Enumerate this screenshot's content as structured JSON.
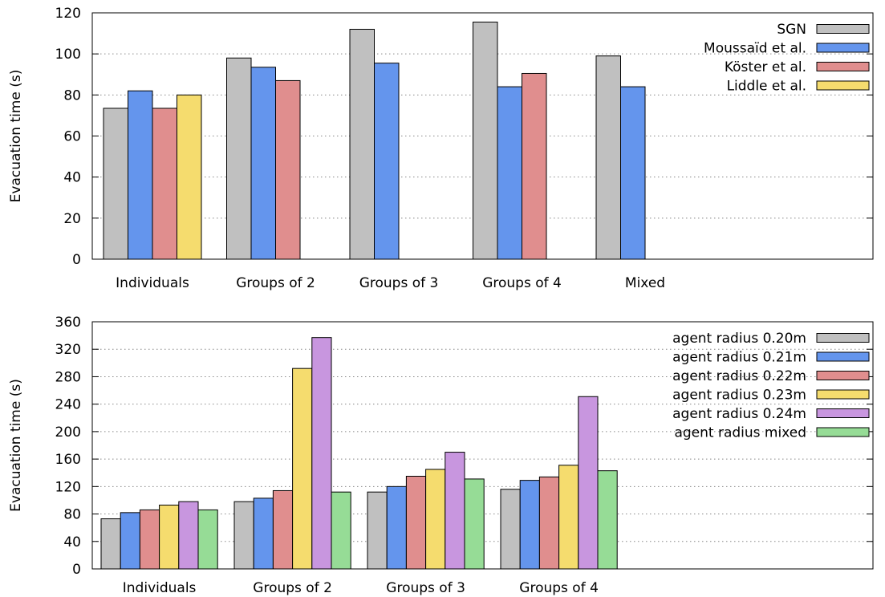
{
  "colors": {
    "grey": "#c0c0c0",
    "blue": "#6495ed",
    "red": "#e08e8e",
    "yellow": "#f5dc6e",
    "purple": "#c896df",
    "green": "#96dc96"
  },
  "chart_data": [
    {
      "type": "bar",
      "ylabel": "Evacuation time (s)",
      "ylim": [
        0,
        120
      ],
      "yticks": [
        0,
        20,
        40,
        60,
        80,
        100,
        120
      ],
      "grid": "horizontal-dotted",
      "legend_position": "top-right",
      "categories": [
        "Individuals",
        "Groups of 2",
        "Groups of 3",
        "Groups of 4",
        "Mixed"
      ],
      "series": [
        {
          "name": "SGN",
          "color": "#c0c0c0",
          "values": [
            73.5,
            98,
            112,
            115.5,
            99
          ]
        },
        {
          "name": "Moussaïd et al.",
          "color": "#6495ed",
          "values": [
            82,
            93.5,
            95.5,
            84,
            84
          ]
        },
        {
          "name": "Köster et al.",
          "color": "#e08e8e",
          "values": [
            73.5,
            87,
            null,
            90.5,
            null
          ]
        },
        {
          "name": "Liddle et al.",
          "color": "#f5dc6e",
          "values": [
            80,
            null,
            null,
            null,
            null
          ]
        }
      ]
    },
    {
      "type": "bar",
      "ylabel": "Evacuation time (s)",
      "ylim": [
        0,
        360
      ],
      "yticks": [
        0,
        40,
        80,
        120,
        160,
        200,
        240,
        280,
        320,
        360
      ],
      "grid": "horizontal-dotted",
      "legend_position": "top-right",
      "categories": [
        "Individuals",
        "Groups of 2",
        "Groups of 3",
        "Groups of 4"
      ],
      "series": [
        {
          "name": "agent radius 0.20m",
          "color": "#c0c0c0",
          "values": [
            73,
            98,
            112,
            116
          ]
        },
        {
          "name": "agent radius 0.21m",
          "color": "#6495ed",
          "values": [
            82,
            103,
            120,
            129
          ]
        },
        {
          "name": "agent radius 0.22m",
          "color": "#e08e8e",
          "values": [
            86,
            114,
            135,
            134
          ]
        },
        {
          "name": "agent radius 0.23m",
          "color": "#f5dc6e",
          "values": [
            93,
            292,
            145,
            151
          ]
        },
        {
          "name": "agent radius 0.24m",
          "color": "#c896df",
          "values": [
            98,
            337,
            170,
            251
          ]
        },
        {
          "name": "agent radius mixed",
          "color": "#96dc96",
          "values": [
            86,
            112,
            131,
            143
          ]
        }
      ]
    }
  ]
}
